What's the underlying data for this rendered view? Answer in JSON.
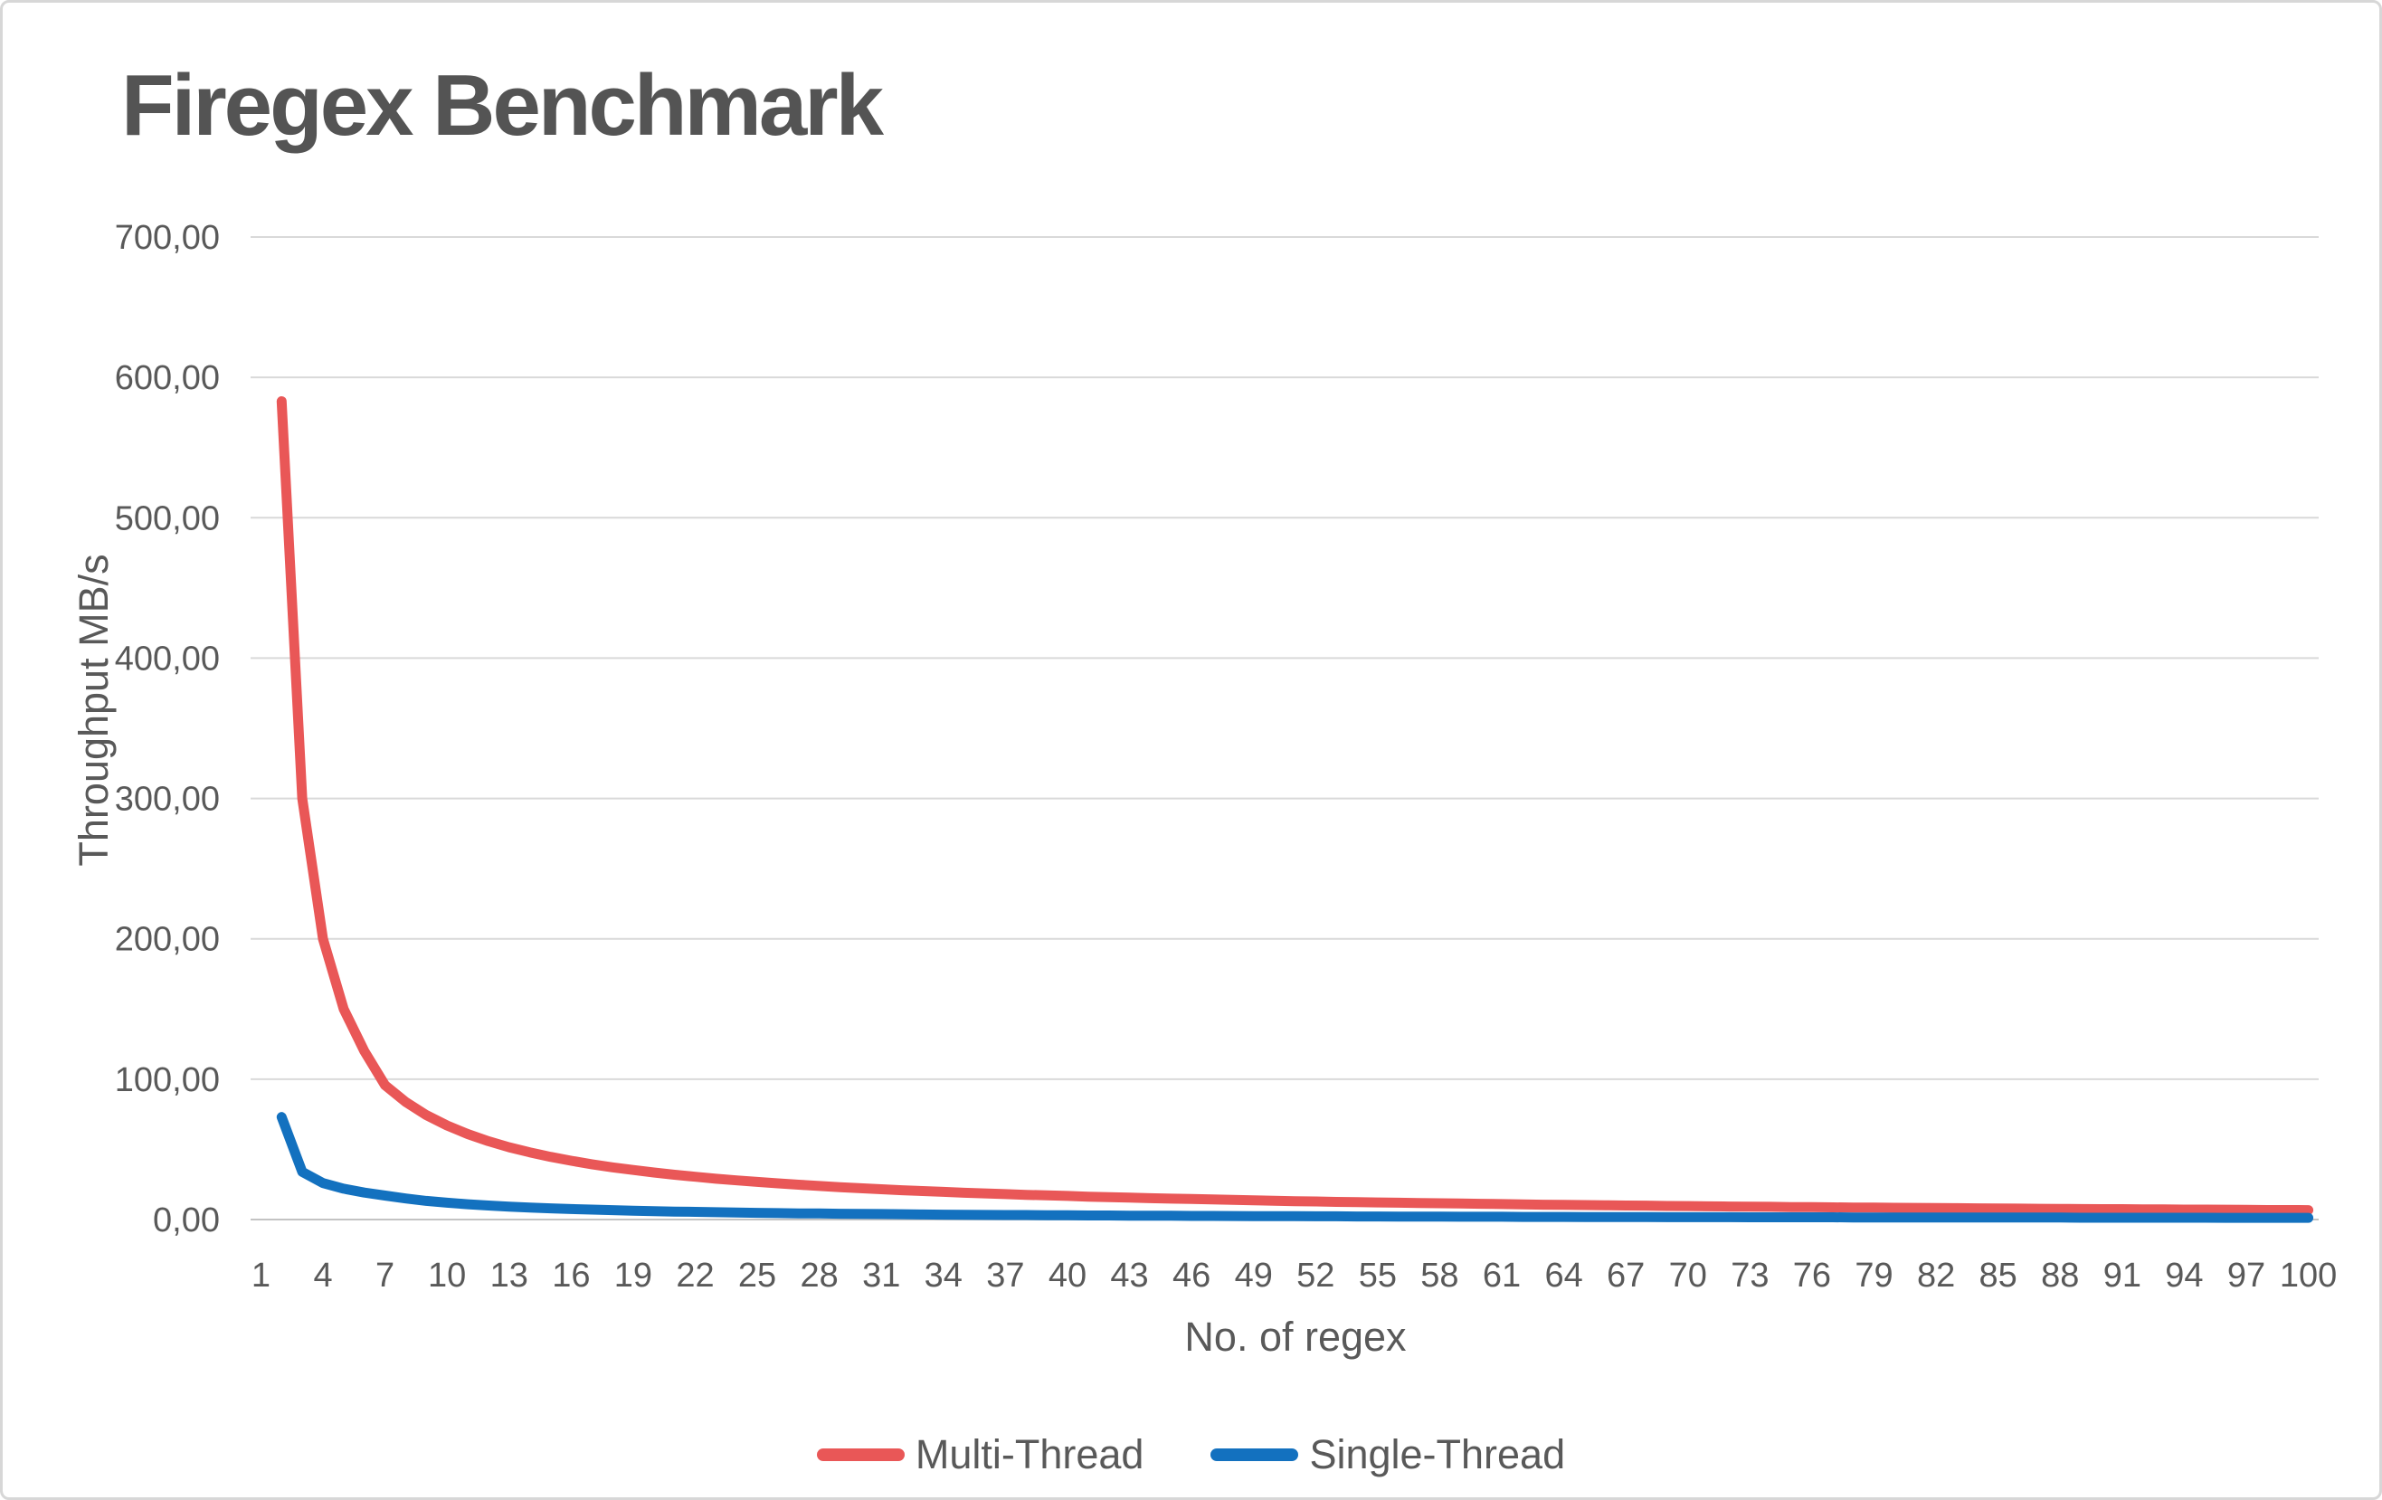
{
  "title": "Firegex Benchmark",
  "colors": {
    "title_text": "#545454",
    "axis_text": "#595959",
    "gridline": "#D9D9D9",
    "axis_line": "#C3C3C3",
    "frame_border": "#D7D7D7",
    "background": "#FFFFFF",
    "multi_thread": "#E95757",
    "single_thread": "#1371BF"
  },
  "y_axis": {
    "title": "Throughput MB/s"
  },
  "x_axis": {
    "title": "No. of regex"
  },
  "chart_data": {
    "type": "line",
    "title": "Firegex Benchmark",
    "xlabel": "No. of regex",
    "ylabel": "Throughput MB/s",
    "x_range": [
      1,
      100
    ],
    "ylim": [
      0,
      700
    ],
    "grid": "horizontal",
    "legend_position": "bottom",
    "y_tick_values": [
      0,
      100,
      200,
      300,
      400,
      500,
      600,
      700
    ],
    "y_tick_labels": [
      "0,00",
      "100,00",
      "200,00",
      "300,00",
      "400,00",
      "500,00",
      "600,00",
      "700,00"
    ],
    "x_tick_values": [
      1,
      4,
      7,
      10,
      13,
      16,
      19,
      22,
      25,
      28,
      31,
      34,
      37,
      40,
      43,
      46,
      49,
      52,
      55,
      58,
      61,
      64,
      67,
      70,
      73,
      76,
      79,
      82,
      85,
      88,
      91,
      94,
      97,
      100
    ],
    "series": [
      {
        "name": "Multi-Thread",
        "color": "#E95757",
        "x_start": 2,
        "values": [
          583,
          300,
          200,
          150,
          120,
          95.7,
          83.8,
          74.4,
          67,
          60.9,
          55.8,
          51.5,
          47.9,
          44.7,
          41.9,
          39.4,
          37.2,
          35.3,
          33.5,
          31.9,
          30.5,
          29.1,
          27.9,
          26.8,
          25.8,
          24.8,
          23.9,
          23.1,
          22.3,
          21.6,
          20.9,
          20.3,
          19.7,
          19.1,
          18.6,
          18.1,
          17.6,
          17.2,
          16.8,
          16.3,
          16,
          15.6,
          15.2,
          14.9,
          14.6,
          14.3,
          14,
          13.7,
          13.4,
          13.1,
          12.9,
          12.6,
          12.4,
          12.2,
          12,
          11.8,
          11.6,
          11.4,
          11.2,
          11,
          10.8,
          10.6,
          10.5,
          10.3,
          10.2,
          10,
          9.9,
          9.7,
          9.6,
          9.4,
          9.3,
          9.2,
          9.1,
          8.9,
          8.8,
          8.7,
          8.6,
          8.5,
          8.4,
          8.3,
          8.2,
          8.1,
          8,
          7.9,
          7.8,
          7.7,
          7.6,
          7.5,
          7.4,
          7.4,
          7.3,
          7.2,
          7.1,
          7.1,
          7,
          6.9,
          6.8,
          6.8,
          6.7
        ]
      },
      {
        "name": "Single-Thread",
        "color": "#1371BF",
        "x_start": 2,
        "values": [
          73,
          34,
          26,
          22,
          19.2,
          17.1,
          15,
          13.3,
          12,
          10.9,
          10,
          9.2,
          8.6,
          8,
          7.5,
          7.1,
          6.7,
          6.3,
          6,
          5.7,
          5.5,
          5.2,
          5,
          4.8,
          4.6,
          4.4,
          4.3,
          4.1,
          4,
          3.9,
          3.8,
          3.6,
          3.5,
          3.4,
          3.3,
          3.2,
          3.2,
          3.1,
          3,
          2.9,
          2.9,
          2.8,
          2.7,
          2.7,
          2.6,
          2.6,
          2.5,
          2.4,
          2.4,
          2.4,
          2.3,
          2.3,
          2.2,
          2.2,
          2.1,
          2.1,
          2.1,
          2,
          2,
          2,
          1.9,
          1.9,
          1.9,
          1.8,
          1.8,
          1.8,
          1.8,
          1.7,
          1.7,
          1.7,
          1.7,
          1.6,
          1.6,
          1.6,
          1.6,
          1.6,
          1.5,
          1.5,
          1.5,
          1.5,
          1.5,
          1.4,
          1.4,
          1.4,
          1.4,
          1.4,
          1.4,
          1.3,
          1.3,
          1.3,
          1.3,
          1.3,
          1.3,
          1.3,
          1.2,
          1.2,
          1.2,
          1.2,
          1.2
        ]
      }
    ]
  }
}
